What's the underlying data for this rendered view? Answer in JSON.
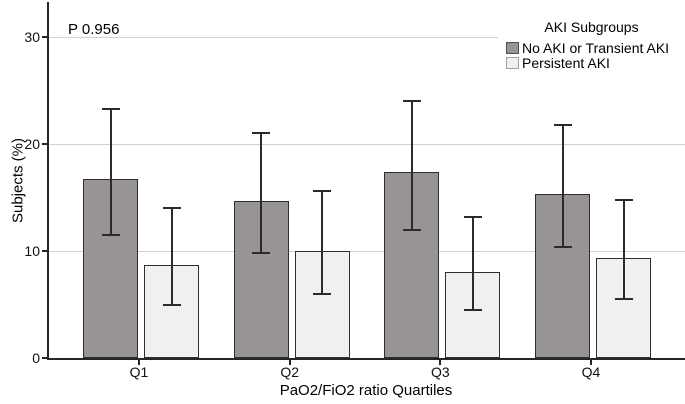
{
  "annotation": {
    "p_value": "P 0.956"
  },
  "y_axis": {
    "title": "Subjects (%)",
    "tick_labels": [
      "0",
      "10",
      "20",
      "30"
    ]
  },
  "x_axis": {
    "title": "PaO2/FiO2 ratio Quartiles",
    "tick_labels": [
      "Q1",
      "Q2",
      "Q3",
      "Q4"
    ]
  },
  "legend": {
    "title": "AKI Subgroups",
    "items": [
      {
        "label": "No AKI or Transient AKI",
        "color": "#989493",
        "border_color": "#4d4d4d"
      },
      {
        "label": "Persistent AKI",
        "color": "#f1f0ef",
        "border_color": "#a0a0a0"
      }
    ]
  },
  "colors": {
    "dark_bar_fill": "#989493",
    "light_bar_fill": "#f1f0ef",
    "bar_border": "#2f2f2f",
    "error_bar": "#2b2b2b",
    "gridline": "#d2d2d2",
    "axis": "#262626"
  },
  "chart_data": {
    "type": "bar",
    "title": "",
    "xlabel": "PaO2/FiO2 ratio Quartiles",
    "ylabel": "Subjects (%)",
    "categories": [
      "Q1",
      "Q2",
      "Q3",
      "Q4"
    ],
    "series": [
      {
        "name": "No AKI or Transient AKI",
        "color": "#989493",
        "values": [
          16.7,
          14.7,
          17.4,
          15.3
        ],
        "error_low": [
          11.5,
          9.8,
          12.0,
          10.4
        ],
        "error_high": [
          23.3,
          21.0,
          24.0,
          21.8
        ]
      },
      {
        "name": "Persistent AKI",
        "color": "#f1f0ef",
        "values": [
          8.7,
          10.0,
          8.0,
          9.4
        ],
        "error_low": [
          5.0,
          6.0,
          4.5,
          5.5
        ],
        "error_high": [
          14.0,
          15.6,
          13.2,
          14.8
        ]
      }
    ],
    "yticks": [
      0,
      10,
      20,
      30
    ],
    "ylim": [
      0,
      33.3
    ],
    "grid": true,
    "legend_position": "top-right",
    "annotations": [
      "P 0.956"
    ]
  }
}
